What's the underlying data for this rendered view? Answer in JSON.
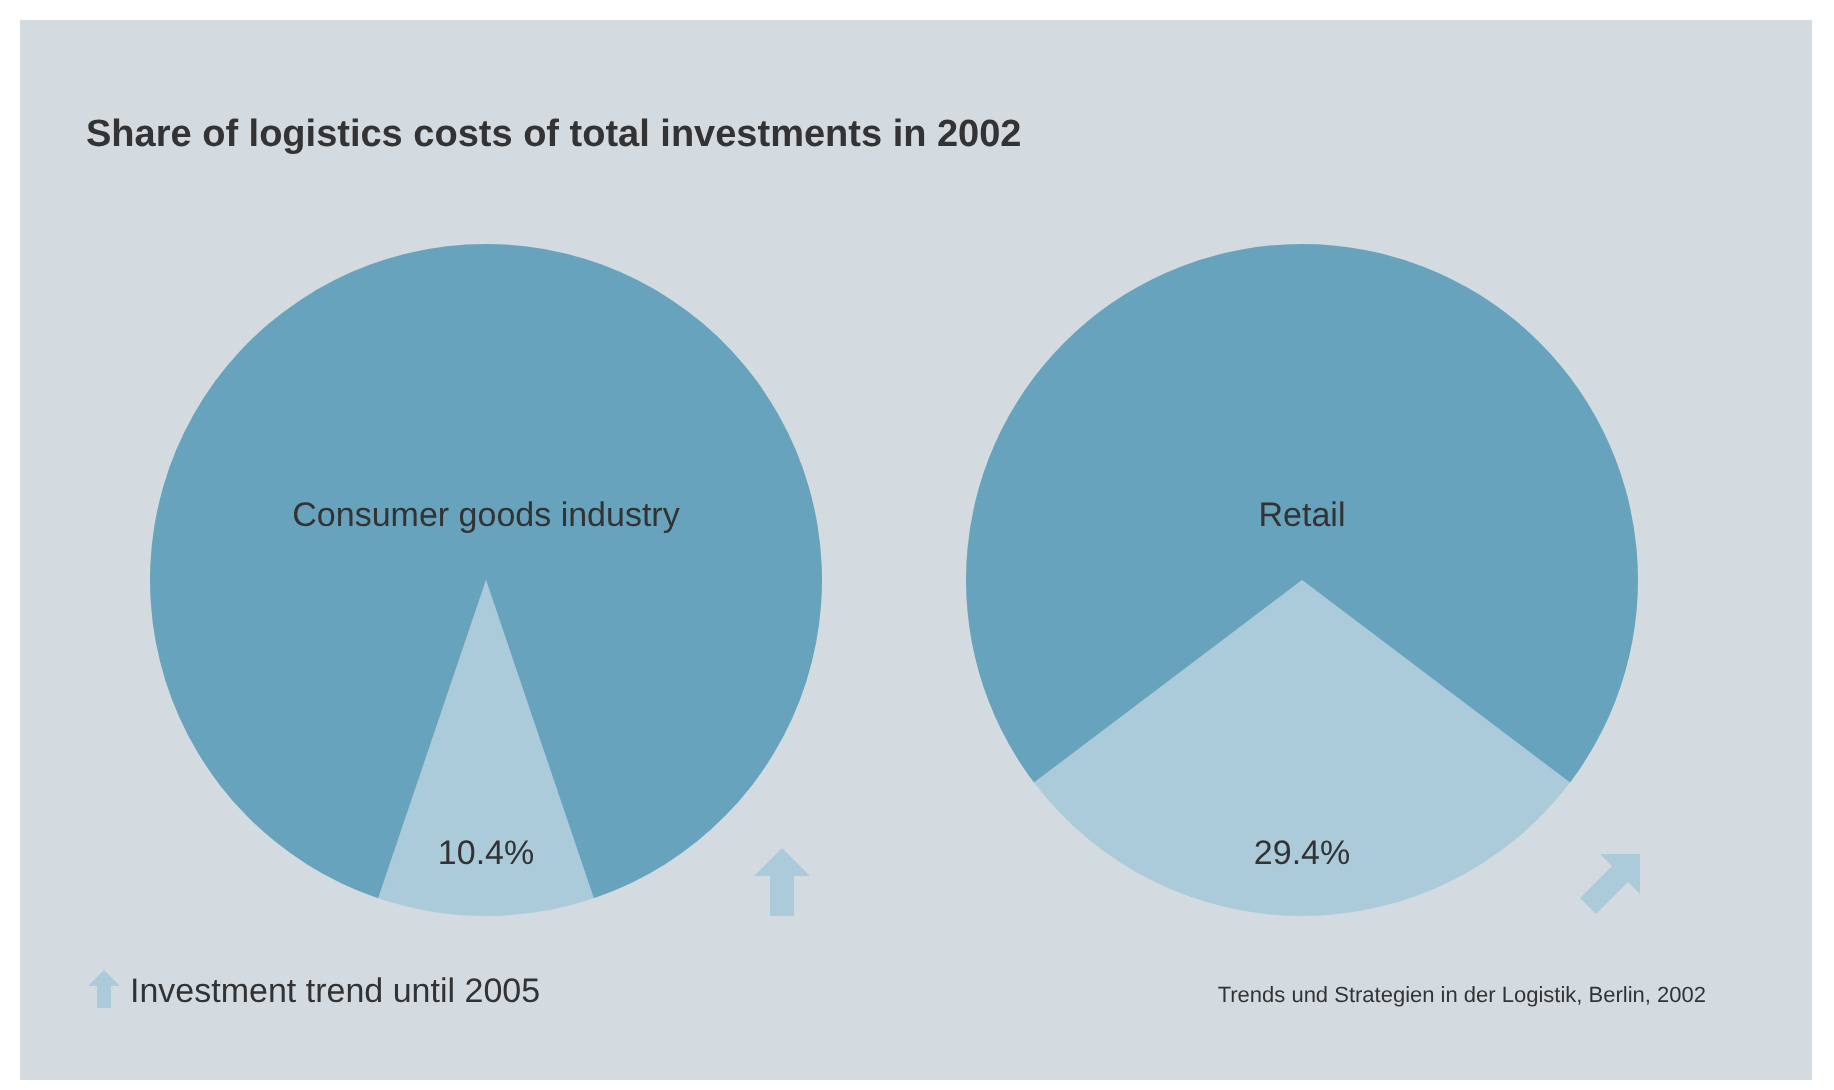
{
  "chart_data": [
    {
      "type": "pie",
      "title": "Share of logistics costs of total investments in 2002",
      "categories": [
        null,
        null
      ],
      "values": [
        10.4,
        89.6
      ],
      "colors": [
        "#abcbdb",
        "#67a3bd"
      ],
      "value_labels": [
        "10.4%",
        null
      ],
      "annotations": [
        "Consumer goods industry",
        "Investment trend until 2005"
      ]
    },
    {
      "type": "pie",
      "categories": [
        null,
        null
      ],
      "values": [
        29.4,
        70.6
      ],
      "colors": [
        "#abcbdb",
        "#67a3bd"
      ],
      "value_labels": [
        "29.4%",
        null
      ],
      "annotations": [
        "Retail",
        "Trends und Strategien in der Logistik, Berlin, 2002"
      ]
    }
  ]
}
